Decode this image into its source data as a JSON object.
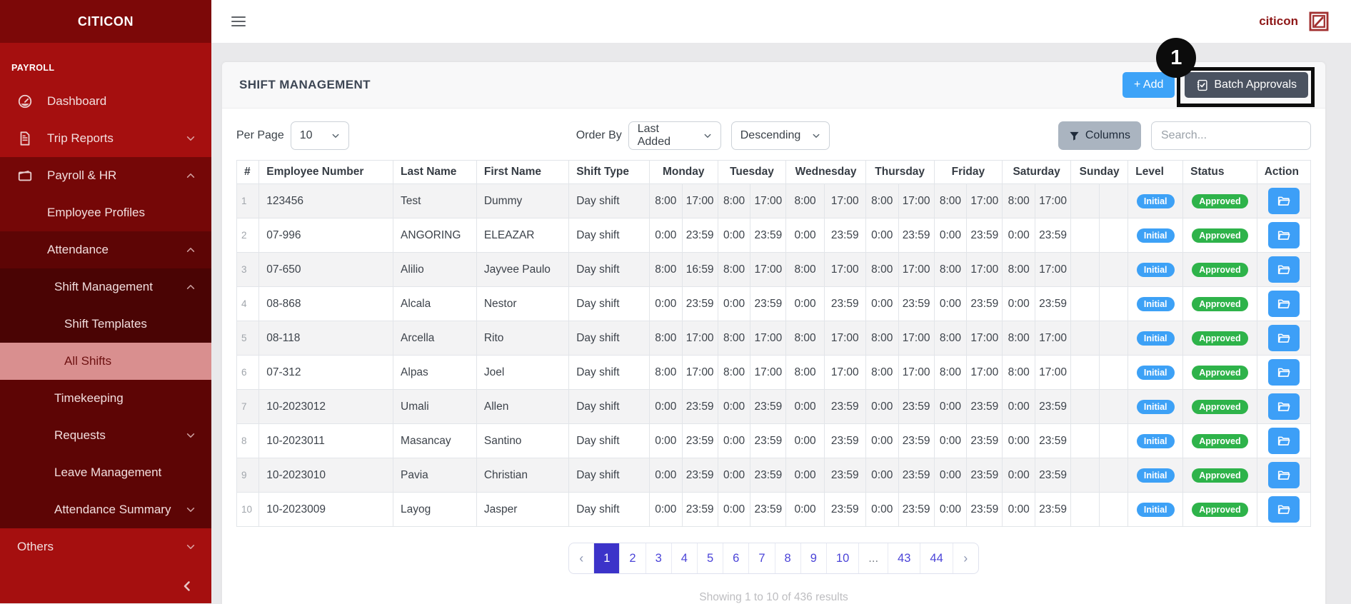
{
  "sidebar": {
    "brand": "CITICON",
    "section_label": "PAYROLL",
    "items": [
      {
        "label": "Dashboard",
        "icon": "gauge-icon",
        "level": 1,
        "bg": "base",
        "chevron": null,
        "active": false
      },
      {
        "label": "Trip Reports",
        "icon": "file-icon",
        "level": 1,
        "bg": "base",
        "chevron": "down",
        "active": false
      },
      {
        "label": "Payroll & HR",
        "icon": "wallet-icon",
        "level": 1,
        "bg": "l1",
        "chevron": "up",
        "active": false
      },
      {
        "label": "Employee Profiles",
        "icon": null,
        "level": 2,
        "bg": "l1",
        "chevron": null,
        "active": false
      },
      {
        "label": "Attendance",
        "icon": null,
        "level": 2,
        "bg": "l2",
        "chevron": "up",
        "active": false
      },
      {
        "label": "Shift Management",
        "icon": null,
        "level": 3,
        "bg": "l3",
        "chevron": "up",
        "active": false
      },
      {
        "label": "Shift Templates",
        "icon": null,
        "level": 4,
        "bg": "l3",
        "chevron": null,
        "active": false
      },
      {
        "label": "All Shifts",
        "icon": null,
        "level": 4,
        "bg": "active",
        "chevron": null,
        "active": true
      },
      {
        "label": "Timekeeping",
        "icon": null,
        "level": 3,
        "bg": "l2",
        "chevron": null,
        "active": false
      },
      {
        "label": "Requests",
        "icon": null,
        "level": 3,
        "bg": "l2",
        "chevron": "down",
        "active": false
      },
      {
        "label": "Leave Management",
        "icon": null,
        "level": 3,
        "bg": "l2",
        "chevron": null,
        "active": false
      },
      {
        "label": "Attendance Summary",
        "icon": null,
        "level": 3,
        "bg": "l2",
        "chevron": "down",
        "active": false
      },
      {
        "label": "Others",
        "icon": null,
        "level": 1,
        "bg": "base",
        "chevron": "down",
        "active": false
      }
    ]
  },
  "topbar": {
    "brand": "citicon"
  },
  "page": {
    "title": "SHIFT MANAGEMENT",
    "add_label": "+ Add",
    "batch_label": "Batch Approvals",
    "annotation_number": "1"
  },
  "filters": {
    "per_page_label": "Per Page",
    "per_page_value": "10",
    "order_by_label": "Order By",
    "order_by_value": "Last Added",
    "direction_value": "Descending",
    "columns_label": "Columns",
    "search_placeholder": "Search..."
  },
  "table": {
    "headers": [
      "#",
      "Employee Number",
      "Last Name",
      "First Name",
      "Shift Type",
      "Monday",
      "Tuesday",
      "Wednesday",
      "Thursday",
      "Friday",
      "Saturday",
      "Sunday",
      "Level",
      "Status",
      "Action"
    ],
    "rows": [
      {
        "num": "1",
        "employee_number": "123456",
        "last_name": "Test",
        "first_name": "Dummy",
        "shift_type": "Day shift",
        "days": [
          [
            "8:00",
            "17:00"
          ],
          [
            "8:00",
            "17:00"
          ],
          [
            "8:00",
            "17:00"
          ],
          [
            "8:00",
            "17:00"
          ],
          [
            "8:00",
            "17:00"
          ],
          [
            "8:00",
            "17:00"
          ],
          [
            "",
            ""
          ]
        ],
        "level": "Initial",
        "status": "Approved"
      },
      {
        "num": "2",
        "employee_number": "07-996",
        "last_name": "ANGORING",
        "first_name": "ELEAZAR",
        "shift_type": "Day shift",
        "days": [
          [
            "0:00",
            "23:59"
          ],
          [
            "0:00",
            "23:59"
          ],
          [
            "0:00",
            "23:59"
          ],
          [
            "0:00",
            "23:59"
          ],
          [
            "0:00",
            "23:59"
          ],
          [
            "0:00",
            "23:59"
          ],
          [
            "",
            ""
          ]
        ],
        "level": "Initial",
        "status": "Approved"
      },
      {
        "num": "3",
        "employee_number": "07-650",
        "last_name": "Alilio",
        "first_name": "Jayvee Paulo",
        "shift_type": "Day shift",
        "days": [
          [
            "8:00",
            "16:59"
          ],
          [
            "8:00",
            "17:00"
          ],
          [
            "8:00",
            "17:00"
          ],
          [
            "8:00",
            "17:00"
          ],
          [
            "8:00",
            "17:00"
          ],
          [
            "8:00",
            "17:00"
          ],
          [
            "",
            ""
          ]
        ],
        "level": "Initial",
        "status": "Approved"
      },
      {
        "num": "4",
        "employee_number": "08-868",
        "last_name": "Alcala",
        "first_name": "Nestor",
        "shift_type": "Day shift",
        "days": [
          [
            "0:00",
            "23:59"
          ],
          [
            "0:00",
            "23:59"
          ],
          [
            "0:00",
            "23:59"
          ],
          [
            "0:00",
            "23:59"
          ],
          [
            "0:00",
            "23:59"
          ],
          [
            "0:00",
            "23:59"
          ],
          [
            "",
            ""
          ]
        ],
        "level": "Initial",
        "status": "Approved"
      },
      {
        "num": "5",
        "employee_number": "08-118",
        "last_name": "Arcella",
        "first_name": "Rito",
        "shift_type": "Day shift",
        "days": [
          [
            "8:00",
            "17:00"
          ],
          [
            "8:00",
            "17:00"
          ],
          [
            "8:00",
            "17:00"
          ],
          [
            "8:00",
            "17:00"
          ],
          [
            "8:00",
            "17:00"
          ],
          [
            "8:00",
            "17:00"
          ],
          [
            "",
            ""
          ]
        ],
        "level": "Initial",
        "status": "Approved"
      },
      {
        "num": "6",
        "employee_number": "07-312",
        "last_name": "Alpas",
        "first_name": "Joel",
        "shift_type": "Day shift",
        "days": [
          [
            "8:00",
            "17:00"
          ],
          [
            "8:00",
            "17:00"
          ],
          [
            "8:00",
            "17:00"
          ],
          [
            "8:00",
            "17:00"
          ],
          [
            "8:00",
            "17:00"
          ],
          [
            "8:00",
            "17:00"
          ],
          [
            "",
            ""
          ]
        ],
        "level": "Initial",
        "status": "Approved"
      },
      {
        "num": "7",
        "employee_number": "10-2023012",
        "last_name": "Umali",
        "first_name": "Allen",
        "shift_type": "Day shift",
        "days": [
          [
            "0:00",
            "23:59"
          ],
          [
            "0:00",
            "23:59"
          ],
          [
            "0:00",
            "23:59"
          ],
          [
            "0:00",
            "23:59"
          ],
          [
            "0:00",
            "23:59"
          ],
          [
            "0:00",
            "23:59"
          ],
          [
            "",
            ""
          ]
        ],
        "level": "Initial",
        "status": "Approved"
      },
      {
        "num": "8",
        "employee_number": "10-2023011",
        "last_name": "Masancay",
        "first_name": "Santino",
        "shift_type": "Day shift",
        "days": [
          [
            "0:00",
            "23:59"
          ],
          [
            "0:00",
            "23:59"
          ],
          [
            "0:00",
            "23:59"
          ],
          [
            "0:00",
            "23:59"
          ],
          [
            "0:00",
            "23:59"
          ],
          [
            "0:00",
            "23:59"
          ],
          [
            "",
            ""
          ]
        ],
        "level": "Initial",
        "status": "Approved"
      },
      {
        "num": "9",
        "employee_number": "10-2023010",
        "last_name": "Pavia",
        "first_name": "Christian",
        "shift_type": "Day shift",
        "days": [
          [
            "0:00",
            "23:59"
          ],
          [
            "0:00",
            "23:59"
          ],
          [
            "0:00",
            "23:59"
          ],
          [
            "0:00",
            "23:59"
          ],
          [
            "0:00",
            "23:59"
          ],
          [
            "0:00",
            "23:59"
          ],
          [
            "",
            ""
          ]
        ],
        "level": "Initial",
        "status": "Approved"
      },
      {
        "num": "10",
        "employee_number": "10-2023009",
        "last_name": "Layog",
        "first_name": "Jasper",
        "shift_type": "Day shift",
        "days": [
          [
            "0:00",
            "23:59"
          ],
          [
            "0:00",
            "23:59"
          ],
          [
            "0:00",
            "23:59"
          ],
          [
            "0:00",
            "23:59"
          ],
          [
            "0:00",
            "23:59"
          ],
          [
            "0:00",
            "23:59"
          ],
          [
            "",
            ""
          ]
        ],
        "level": "Initial",
        "status": "Approved"
      }
    ]
  },
  "pagination": {
    "prev": "‹",
    "next": "›",
    "pages": [
      "1",
      "2",
      "3",
      "4",
      "5",
      "6",
      "7",
      "8",
      "9",
      "10",
      "...",
      "43",
      "44"
    ],
    "active": "1",
    "summary": "Showing 1 to 10 of 436 results"
  },
  "colors": {
    "sidebar_base": "#a50f0f",
    "sidebar_header": "#7c0808",
    "sidebar_active_bg": "#d98f8f",
    "add_button": "#3da3f8",
    "batch_button": "#4a5260",
    "badge_initial": "#3da1f6",
    "badge_approved": "#2eb34a",
    "pagination_active": "#3c33c9",
    "annotation": "#0c0c0c"
  }
}
